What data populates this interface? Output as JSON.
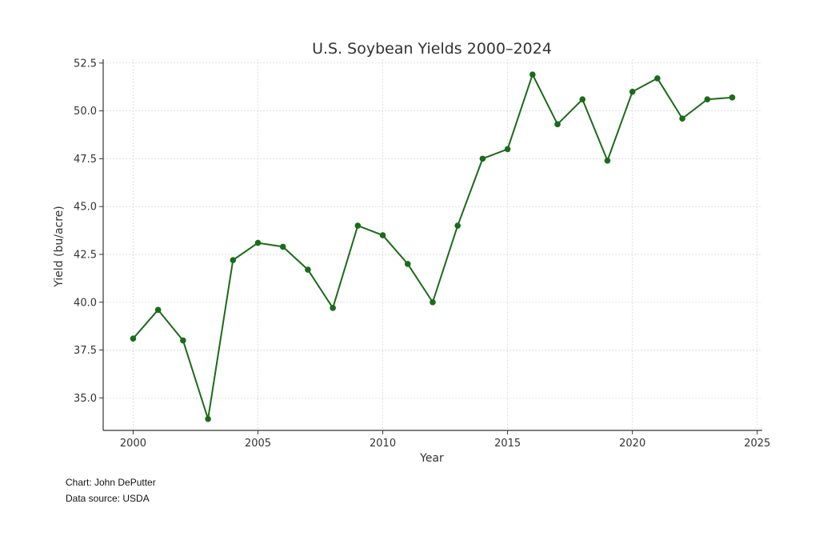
{
  "chart_data": {
    "type": "line",
    "title": "U.S. Soybean Yields 2000–2024",
    "xlabel": "Year",
    "ylabel": "Yield (bu/acre)",
    "xlim": [
      1998.8,
      2025.2
    ],
    "ylim": [
      33.3,
      52.7
    ],
    "x_ticks": [
      2000,
      2005,
      2010,
      2015,
      2020,
      2025
    ],
    "y_ticks": [
      35.0,
      37.5,
      40.0,
      42.5,
      45.0,
      47.5,
      50.0,
      52.5
    ],
    "grid": true,
    "series": [
      {
        "color": "#1a6b1a",
        "x": [
          2000,
          2001,
          2002,
          2003,
          2004,
          2005,
          2006,
          2007,
          2008,
          2009,
          2010,
          2011,
          2012,
          2013,
          2014,
          2015,
          2016,
          2017,
          2018,
          2019,
          2020,
          2021,
          2022,
          2023,
          2024
        ],
        "values": [
          38.1,
          39.6,
          38.0,
          33.9,
          42.2,
          43.1,
          42.9,
          41.7,
          39.7,
          44.0,
          43.5,
          42.0,
          40.0,
          44.0,
          47.5,
          48.0,
          51.9,
          49.3,
          50.6,
          47.4,
          51.0,
          51.7,
          49.6,
          50.6,
          50.7
        ]
      }
    ]
  },
  "credits": {
    "author": "Chart: John DePutter",
    "source": "Data source: USDA"
  }
}
